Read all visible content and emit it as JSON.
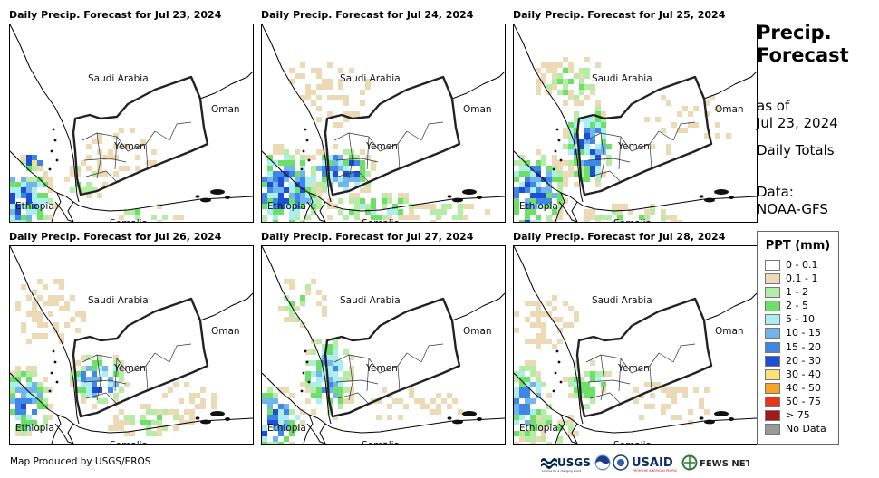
{
  "panels": [
    {
      "title": "Daily Precip. Forecast for Jul 23, 2024",
      "date": "Jul 23"
    },
    {
      "title": "Daily Precip. Forecast for Jul 24, 2024",
      "date": "Jul 24"
    },
    {
      "title": "Daily Precip. Forecast for Jul 25, 2024",
      "date": "Jul 25"
    },
    {
      "title": "Daily Precip. Forecast for Jul 26, 2024",
      "date": "Jul 26"
    },
    {
      "title": "Daily Precip. Forecast for Jul 27, 2024",
      "date": "Jul 27"
    },
    {
      "title": "Daily Precip. Forecast for Jul 28, 2024",
      "date": "Jul 28"
    }
  ],
  "map_labels": {
    "saudi_arabia": "Saudi Arabia",
    "oman": "Oman",
    "yemen": "Yemen",
    "ethiopia": "Ethiopia",
    "somalia": "Somalia"
  },
  "side": {
    "title_line1": "Precip.",
    "title_line2": "Forecast",
    "as_of_line1": "as of",
    "as_of_line2": "Jul 23, 2024",
    "daily_totals": "Daily Totals",
    "data_line1": "Data:",
    "data_line2": "NOAA-GFS"
  },
  "legend": {
    "title": "PPT (mm)",
    "items": [
      {
        "label": "0 - 0.1",
        "color": "#ffffff"
      },
      {
        "label": "0.1 - 1",
        "color": "#ecd9b5"
      },
      {
        "label": "1 - 2",
        "color": "#b5eca6"
      },
      {
        "label": "2 - 5",
        "color": "#6ee06a"
      },
      {
        "label": "5 - 10",
        "color": "#aaeef0"
      },
      {
        "label": "10 - 15",
        "color": "#72b4ec"
      },
      {
        "label": "15 - 20",
        "color": "#3f86e6"
      },
      {
        "label": "20 - 30",
        "color": "#1a4fd6"
      },
      {
        "label": "30 - 40",
        "color": "#f9e17a"
      },
      {
        "label": "40 - 50",
        "color": "#f5a623"
      },
      {
        "label": "50 - 75",
        "color": "#e8361c"
      },
      {
        "label": "> 75",
        "color": "#a01a1a"
      },
      {
        "label": "No Data",
        "color": "#9a9a9a"
      }
    ]
  },
  "footer": {
    "credit": "Map Produced by USGS/EROS",
    "logos": {
      "usgs": "USGS",
      "usgs_tagline": "science for a changing world",
      "usaid": "USAID",
      "usaid_tagline": "FROM THE AMERICAN PEOPLE",
      "fewsnet": "FEWS NET"
    }
  }
}
